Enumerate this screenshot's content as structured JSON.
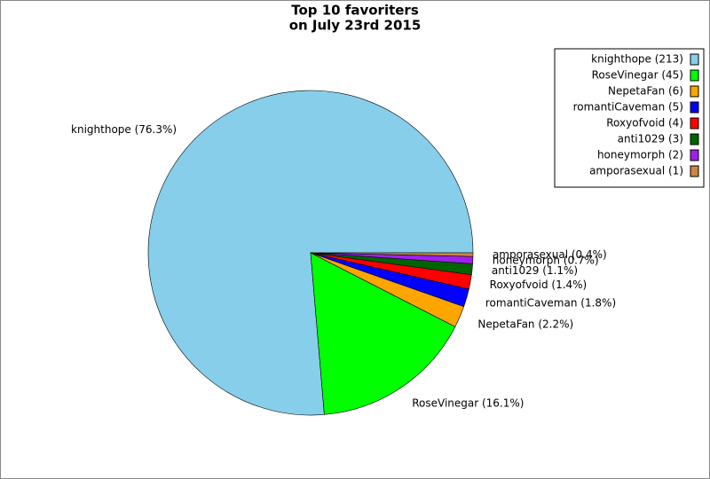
{
  "chart_data": {
    "type": "pie",
    "title": [
      "Top 10 favoriters",
      "on July 23rd 2015"
    ],
    "values": [
      213,
      45,
      6,
      5,
      4,
      3,
      2,
      1
    ],
    "value_labels": [
      "knighthope (76.3%)",
      "RoseVinegar (16.1%)",
      "NepetaFan (2.2%)",
      "romantiCaveman (1.8%)",
      "Roxyofvoid (1.4%)",
      "anti1029 (1.1%)",
      "honeymorph (0.7%)",
      "amporasexual (0.4%)"
    ],
    "legend_labels": [
      "knighthope (213)",
      "RoseVinegar (45)",
      "NepetaFan (6)",
      "romantiCaveman (5)",
      "Roxyofvoid (4)",
      "anti1029 (3)",
      "honeymorph (2)",
      "amporasexual (1)"
    ],
    "colors": [
      "#87ceeb",
      "#00ff00",
      "#ffa500",
      "#0000ff",
      "#ff0000",
      "#006400",
      "#a020f0",
      "#cd853f"
    ],
    "legend": "upper right"
  }
}
